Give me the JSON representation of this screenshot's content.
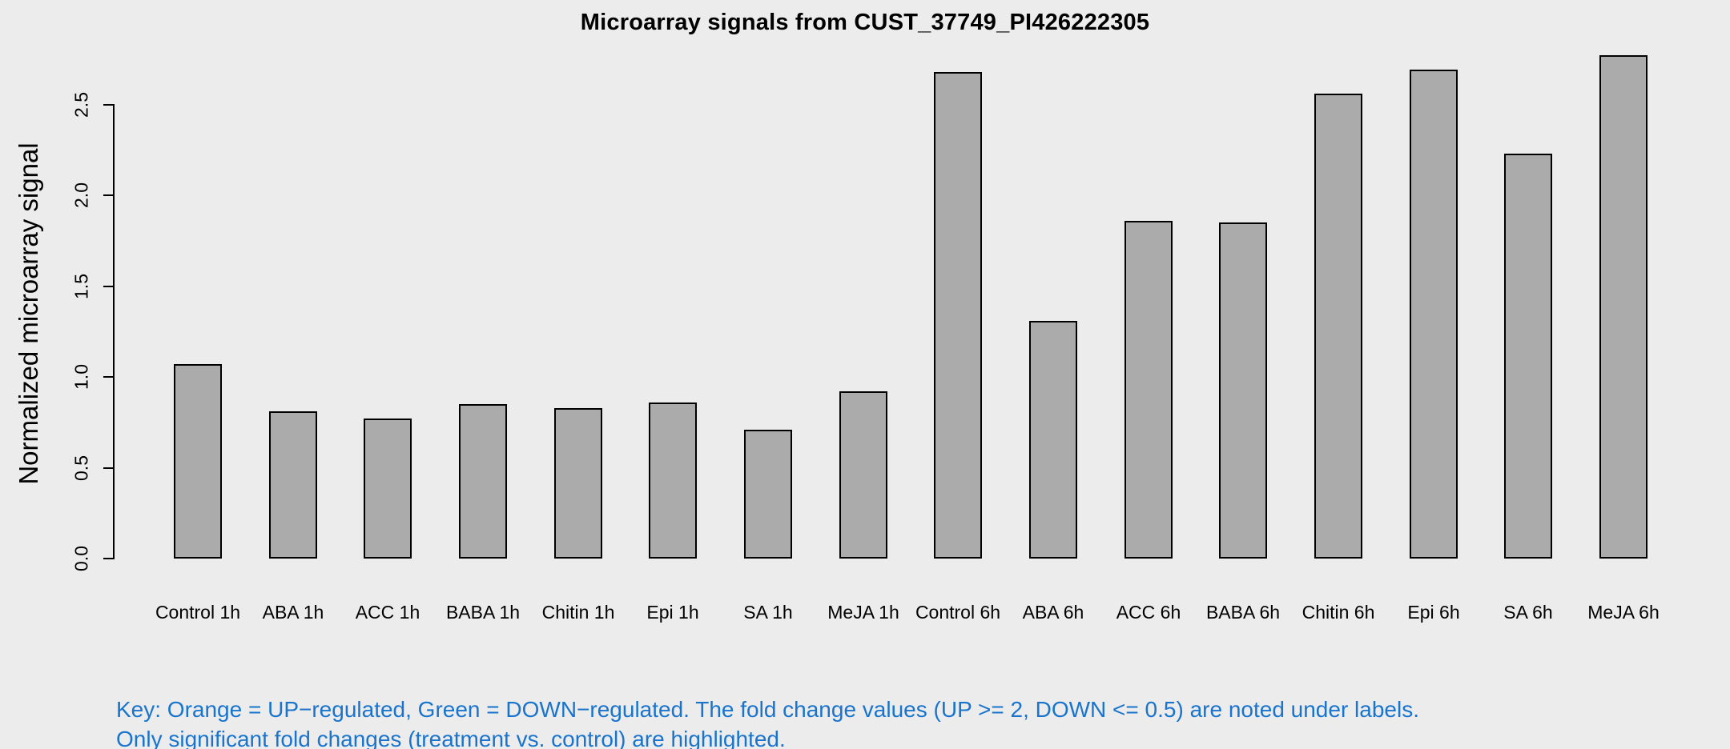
{
  "chart_data": {
    "type": "bar",
    "title": "Microarray signals from CUST_37749_PI426222305",
    "xlabel": "",
    "ylabel": "Normalized microarray signal",
    "categories": [
      "Control 1h",
      "ABA 1h",
      "ACC 1h",
      "BABA 1h",
      "Chitin 1h",
      "Epi 1h",
      "SA 1h",
      "MeJA 1h",
      "Control 6h",
      "ABA 6h",
      "ACC 6h",
      "BABA 6h",
      "Chitin 6h",
      "Epi 6h",
      "SA 6h",
      "MeJA 6h"
    ],
    "values": [
      1.07,
      0.81,
      0.77,
      0.85,
      0.83,
      0.86,
      0.71,
      0.92,
      2.68,
      1.31,
      1.86,
      1.85,
      2.56,
      2.69,
      2.23,
      2.77
    ],
    "ytick_labels": [
      "0.0",
      "0.5",
      "1.0",
      "1.5",
      "2.0",
      "2.5"
    ],
    "ylim": [
      0,
      2.8
    ],
    "grid": false,
    "legend": "none",
    "bar_fill": "#ABABAB",
    "bar_border": "#000000"
  },
  "footnote": {
    "line1": "Key: Orange = UP−regulated, Green = DOWN−regulated. The fold change values (UP >= 2, DOWN <= 0.5) are noted under labels.",
    "line2": "Only significant fold changes (treatment vs. control) are highlighted.",
    "color": "#1874CD"
  },
  "colors": {
    "background": "#ECECEC",
    "axis": "#000000",
    "text": "#000000"
  }
}
